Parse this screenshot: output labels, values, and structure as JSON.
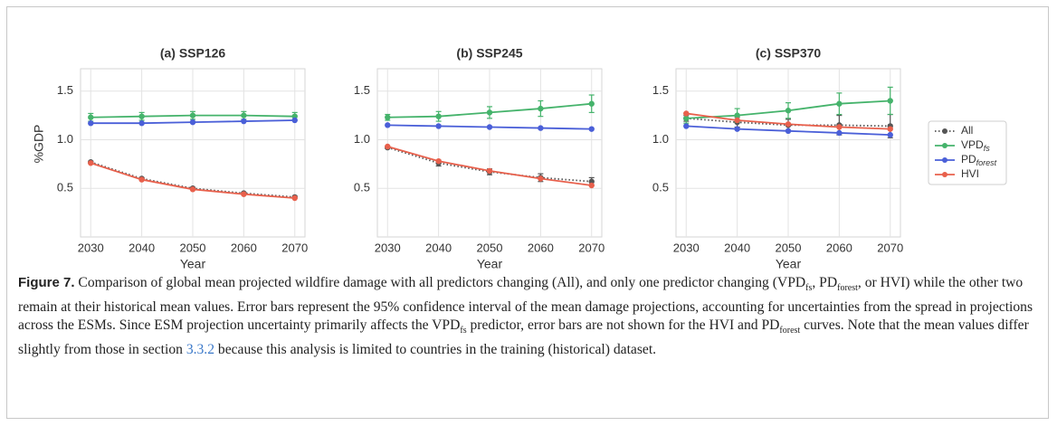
{
  "chart_data": [
    {
      "type": "line",
      "title": "(a) SSP126",
      "xlabel": "Year",
      "ylabel": "%GDP",
      "x": [
        2030,
        2040,
        2050,
        2060,
        2070
      ],
      "xlim": [
        2028,
        2072
      ],
      "xticks": [
        2030,
        2040,
        2050,
        2060,
        2070
      ],
      "ylim": [
        0.0,
        1.73
      ],
      "yticks": [
        0.5,
        {
          "value": 1.0,
          "label": "1.0"
        },
        1.5
      ],
      "grid": true,
      "series": [
        {
          "name": "All",
          "color": "#555555",
          "dash": "dotted",
          "values": [
            0.77,
            0.6,
            0.5,
            0.45,
            0.41
          ],
          "errors": [
            0.01,
            0.01,
            0.01,
            0.01,
            0.01
          ]
        },
        {
          "name": "VPD",
          "subscript": "fs",
          "color": "#45b36b",
          "values": [
            1.23,
            1.24,
            1.25,
            1.25,
            1.24
          ],
          "errors": [
            0.04,
            0.04,
            0.04,
            0.04,
            0.04
          ]
        },
        {
          "name": "PD",
          "subscript": "forest",
          "color": "#4a5fd8",
          "values": [
            1.17,
            1.17,
            1.18,
            1.19,
            1.2
          ]
        },
        {
          "name": "HVI",
          "color": "#e8604c",
          "values": [
            0.76,
            0.59,
            0.49,
            0.44,
            0.4
          ]
        }
      ]
    },
    {
      "type": "line",
      "title": "(b) SSP245",
      "xlabel": "Year",
      "x": [
        2030,
        2040,
        2050,
        2060,
        2070
      ],
      "xlim": [
        2028,
        2072
      ],
      "xticks": [
        2030,
        2040,
        2050,
        2060,
        2070
      ],
      "ylim": [
        0.0,
        1.73
      ],
      "yticks": [
        0.5,
        {
          "value": 1.0,
          "label": "1.0"
        },
        1.5
      ],
      "grid": true,
      "series": [
        {
          "name": "All",
          "color": "#555555",
          "dash": "dotted",
          "values": [
            0.92,
            0.76,
            0.67,
            0.61,
            0.57
          ],
          "errors": [
            0.01,
            0.03,
            0.03,
            0.04,
            0.04
          ]
        },
        {
          "name": "VPD",
          "subscript": "fs",
          "color": "#45b36b",
          "values": [
            1.23,
            1.24,
            1.28,
            1.32,
            1.37
          ],
          "errors": [
            0.03,
            0.05,
            0.06,
            0.08,
            0.09
          ]
        },
        {
          "name": "PD",
          "subscript": "forest",
          "color": "#4a5fd8",
          "values": [
            1.15,
            1.14,
            1.13,
            1.12,
            1.11
          ]
        },
        {
          "name": "HVI",
          "color": "#e8604c",
          "values": [
            0.93,
            0.78,
            0.68,
            0.6,
            0.53
          ]
        }
      ]
    },
    {
      "type": "line",
      "title": "(c) SSP370",
      "xlabel": "Year",
      "x": [
        2030,
        2040,
        2050,
        2060,
        2070
      ],
      "xlim": [
        2028,
        2072
      ],
      "xticks": [
        2030,
        2040,
        2050,
        2060,
        2070
      ],
      "ylim": [
        0.0,
        1.73
      ],
      "yticks": [
        0.5,
        {
          "value": 1.0,
          "label": "1.0"
        },
        1.5
      ],
      "grid": true,
      "legend": "right",
      "series": [
        {
          "name": "All",
          "color": "#555555",
          "dash": "dotted",
          "values": [
            1.22,
            1.18,
            1.15,
            1.15,
            1.14
          ],
          "errors": [
            0.03,
            0.05,
            0.06,
            0.1,
            0.12
          ]
        },
        {
          "name": "VPD",
          "subscript": "fs",
          "color": "#45b36b",
          "values": [
            1.22,
            1.25,
            1.3,
            1.37,
            1.4
          ],
          "errors": [
            0.05,
            0.07,
            0.08,
            0.11,
            0.14
          ]
        },
        {
          "name": "PD",
          "subscript": "forest",
          "color": "#4a5fd8",
          "values": [
            1.14,
            1.11,
            1.09,
            1.07,
            1.05
          ]
        },
        {
          "name": "HVI",
          "color": "#e8604c",
          "values": [
            1.27,
            1.2,
            1.16,
            1.13,
            1.11
          ]
        }
      ]
    }
  ],
  "caption": {
    "label": "Figure 7.",
    "parts": [
      " Comparison of global mean projected wildfire damage with all predictors changing (All), and only one predictor changing (VPD",
      "fs",
      ", PD",
      "forest",
      ", or HVI) while the other two remain at their historical mean values. Error bars represent the 95% confidence interval of the mean damage projections, accounting for uncertainties from the spread in projections across the ESMs. Since ESM projection uncertainty primarily affects the VPD",
      "fs",
      " predictor, error bars are not shown for the HVI and PD",
      "forest",
      " curves. Note that the mean values differ slightly from those in section ",
      "3.3.2",
      " because this analysis is limited to countries in the training (historical) dataset."
    ]
  }
}
